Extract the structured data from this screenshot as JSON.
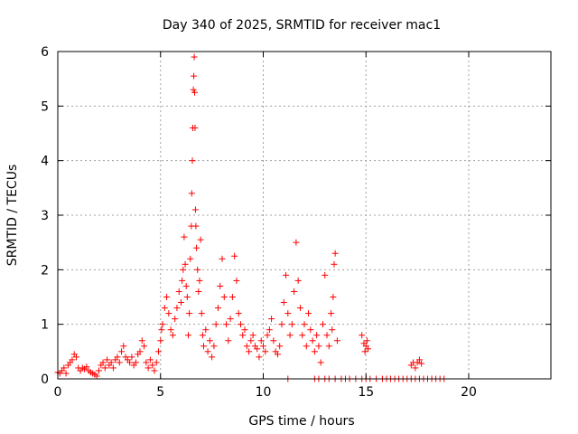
{
  "chart_data": {
    "type": "scatter",
    "title": "Day 340 of 2025, SRMTID for receiver mac1",
    "xlabel": "GPS time / hours",
    "ylabel": "SRMTID / TECUs",
    "xlim": [
      0,
      24
    ],
    "ylim": [
      0,
      6
    ],
    "xticks": [
      0,
      5,
      10,
      15,
      20
    ],
    "yticks": [
      0,
      1,
      2,
      3,
      4,
      5,
      6
    ],
    "grid": true,
    "marker": "+",
    "color": "#ff0000",
    "series": [
      {
        "name": "SRMTID",
        "points": [
          [
            0.0,
            0.12
          ],
          [
            0.1,
            0.1
          ],
          [
            0.2,
            0.15
          ],
          [
            0.3,
            0.2
          ],
          [
            0.4,
            0.1
          ],
          [
            0.5,
            0.25
          ],
          [
            0.6,
            0.3
          ],
          [
            0.7,
            0.35
          ],
          [
            0.8,
            0.45
          ],
          [
            0.9,
            0.4
          ],
          [
            1.0,
            0.2
          ],
          [
            1.1,
            0.15
          ],
          [
            1.2,
            0.2
          ],
          [
            1.3,
            0.18
          ],
          [
            1.4,
            0.22
          ],
          [
            1.5,
            0.15
          ],
          [
            1.6,
            0.12
          ],
          [
            1.7,
            0.1
          ],
          [
            1.8,
            0.08
          ],
          [
            1.9,
            0.05
          ],
          [
            2.0,
            0.15
          ],
          [
            2.1,
            0.25
          ],
          [
            2.2,
            0.3
          ],
          [
            2.3,
            0.2
          ],
          [
            2.4,
            0.35
          ],
          [
            2.5,
            0.25
          ],
          [
            2.6,
            0.3
          ],
          [
            2.7,
            0.2
          ],
          [
            2.8,
            0.35
          ],
          [
            2.9,
            0.4
          ],
          [
            3.0,
            0.3
          ],
          [
            3.1,
            0.5
          ],
          [
            3.2,
            0.6
          ],
          [
            3.3,
            0.4
          ],
          [
            3.4,
            0.35
          ],
          [
            3.5,
            0.3
          ],
          [
            3.6,
            0.4
          ],
          [
            3.7,
            0.25
          ],
          [
            3.8,
            0.3
          ],
          [
            3.9,
            0.45
          ],
          [
            4.0,
            0.5
          ],
          [
            4.1,
            0.7
          ],
          [
            4.2,
            0.6
          ],
          [
            4.3,
            0.3
          ],
          [
            4.4,
            0.2
          ],
          [
            4.5,
            0.35
          ],
          [
            4.6,
            0.25
          ],
          [
            4.7,
            0.15
          ],
          [
            4.8,
            0.3
          ],
          [
            4.9,
            0.5
          ],
          [
            5.0,
            0.7
          ],
          [
            5.05,
            0.9
          ],
          [
            5.1,
            1.0
          ],
          [
            5.2,
            1.3
          ],
          [
            5.3,
            1.5
          ],
          [
            5.4,
            1.2
          ],
          [
            5.5,
            0.9
          ],
          [
            5.6,
            0.8
          ],
          [
            5.7,
            1.1
          ],
          [
            5.8,
            1.3
          ],
          [
            5.9,
            1.6
          ],
          [
            6.0,
            1.4
          ],
          [
            6.05,
            1.8
          ],
          [
            6.1,
            2.0
          ],
          [
            6.15,
            2.6
          ],
          [
            6.2,
            2.1
          ],
          [
            6.25,
            1.7
          ],
          [
            6.3,
            1.5
          ],
          [
            6.35,
            0.8
          ],
          [
            6.4,
            1.2
          ],
          [
            6.45,
            2.2
          ],
          [
            6.5,
            2.8
          ],
          [
            6.52,
            3.4
          ],
          [
            6.55,
            4.0
          ],
          [
            6.57,
            4.6
          ],
          [
            6.6,
            5.3
          ],
          [
            6.62,
            5.55
          ],
          [
            6.64,
            5.9
          ],
          [
            6.66,
            5.25
          ],
          [
            6.68,
            4.6
          ],
          [
            6.7,
            3.1
          ],
          [
            6.72,
            2.8
          ],
          [
            6.75,
            2.4
          ],
          [
            6.8,
            2.0
          ],
          [
            6.85,
            1.6
          ],
          [
            6.9,
            1.8
          ],
          [
            6.95,
            2.55
          ],
          [
            7.0,
            1.2
          ],
          [
            7.05,
            0.8
          ],
          [
            7.1,
            0.6
          ],
          [
            7.2,
            0.9
          ],
          [
            7.3,
            0.5
          ],
          [
            7.4,
            0.7
          ],
          [
            7.5,
            0.4
          ],
          [
            7.6,
            0.6
          ],
          [
            7.7,
            1.0
          ],
          [
            7.8,
            1.3
          ],
          [
            7.9,
            1.7
          ],
          [
            8.0,
            2.2
          ],
          [
            8.1,
            1.5
          ],
          [
            8.2,
            1.0
          ],
          [
            8.3,
            0.7
          ],
          [
            8.4,
            1.1
          ],
          [
            8.5,
            1.5
          ],
          [
            8.6,
            2.25
          ],
          [
            8.7,
            1.8
          ],
          [
            8.8,
            1.2
          ],
          [
            8.9,
            1.0
          ],
          [
            9.0,
            0.8
          ],
          [
            9.1,
            0.9
          ],
          [
            9.2,
            0.6
          ],
          [
            9.3,
            0.5
          ],
          [
            9.4,
            0.7
          ],
          [
            9.5,
            0.8
          ],
          [
            9.6,
            0.6
          ],
          [
            9.7,
            0.55
          ],
          [
            9.8,
            0.4
          ],
          [
            9.9,
            0.7
          ],
          [
            10.0,
            0.6
          ],
          [
            10.1,
            0.5
          ],
          [
            10.2,
            0.8
          ],
          [
            10.3,
            0.9
          ],
          [
            10.4,
            1.1
          ],
          [
            10.5,
            0.7
          ],
          [
            10.6,
            0.5
          ],
          [
            10.7,
            0.45
          ],
          [
            10.8,
            0.6
          ],
          [
            10.9,
            1.0
          ],
          [
            11.0,
            1.4
          ],
          [
            11.1,
            1.9
          ],
          [
            11.2,
            1.2
          ],
          [
            11.3,
            0.8
          ],
          [
            11.4,
            1.0
          ],
          [
            11.5,
            1.6
          ],
          [
            11.6,
            2.5
          ],
          [
            11.7,
            1.8
          ],
          [
            11.8,
            1.3
          ],
          [
            11.9,
            0.8
          ],
          [
            12.0,
            1.0
          ],
          [
            12.1,
            0.6
          ],
          [
            12.2,
            1.2
          ],
          [
            12.3,
            0.9
          ],
          [
            12.4,
            0.7
          ],
          [
            12.5,
            0.5
          ],
          [
            12.6,
            0.8
          ],
          [
            12.7,
            0.6
          ],
          [
            12.8,
            0.3
          ],
          [
            12.9,
            1.0
          ],
          [
            13.0,
            1.9
          ],
          [
            13.1,
            0.8
          ],
          [
            13.2,
            0.6
          ],
          [
            13.3,
            1.2
          ],
          [
            13.35,
            0.9
          ],
          [
            13.4,
            1.5
          ],
          [
            13.45,
            2.1
          ],
          [
            13.5,
            2.3
          ],
          [
            13.6,
            0.7
          ],
          [
            14.8,
            0.8
          ],
          [
            14.9,
            0.65
          ],
          [
            14.95,
            0.5
          ],
          [
            15.0,
            0.6
          ],
          [
            15.05,
            0.7
          ],
          [
            15.1,
            0.55
          ],
          [
            17.2,
            0.25
          ],
          [
            17.3,
            0.3
          ],
          [
            17.4,
            0.2
          ],
          [
            17.5,
            0.3
          ],
          [
            17.6,
            0.35
          ],
          [
            17.7,
            0.28
          ],
          [
            11.2,
            0.0
          ],
          [
            12.5,
            0.0
          ],
          [
            12.7,
            0.0
          ],
          [
            13.0,
            0.0
          ],
          [
            13.5,
            0.0
          ],
          [
            14.0,
            0.0
          ],
          [
            14.5,
            0.0
          ],
          [
            14.8,
            0.0
          ],
          [
            15.2,
            0.0
          ],
          [
            15.5,
            0.0
          ],
          [
            15.8,
            0.0
          ],
          [
            16.2,
            0.0
          ],
          [
            16.6,
            0.0
          ],
          [
            17.0,
            0.0
          ],
          [
            17.4,
            0.0
          ],
          [
            17.8,
            0.0
          ],
          [
            18.2,
            0.0
          ],
          [
            18.6,
            0.0
          ],
          [
            16.0,
            0.0
          ],
          [
            16.4,
            0.0
          ],
          [
            16.8,
            0.0
          ],
          [
            17.2,
            0.0
          ],
          [
            17.6,
            0.0
          ],
          [
            18.0,
            0.0
          ],
          [
            18.4,
            0.0
          ],
          [
            18.8,
            0.0
          ],
          [
            13.2,
            0.0
          ],
          [
            13.8,
            0.0
          ],
          [
            14.2,
            0.0
          ],
          [
            15.0,
            0.0
          ]
        ]
      }
    ]
  }
}
